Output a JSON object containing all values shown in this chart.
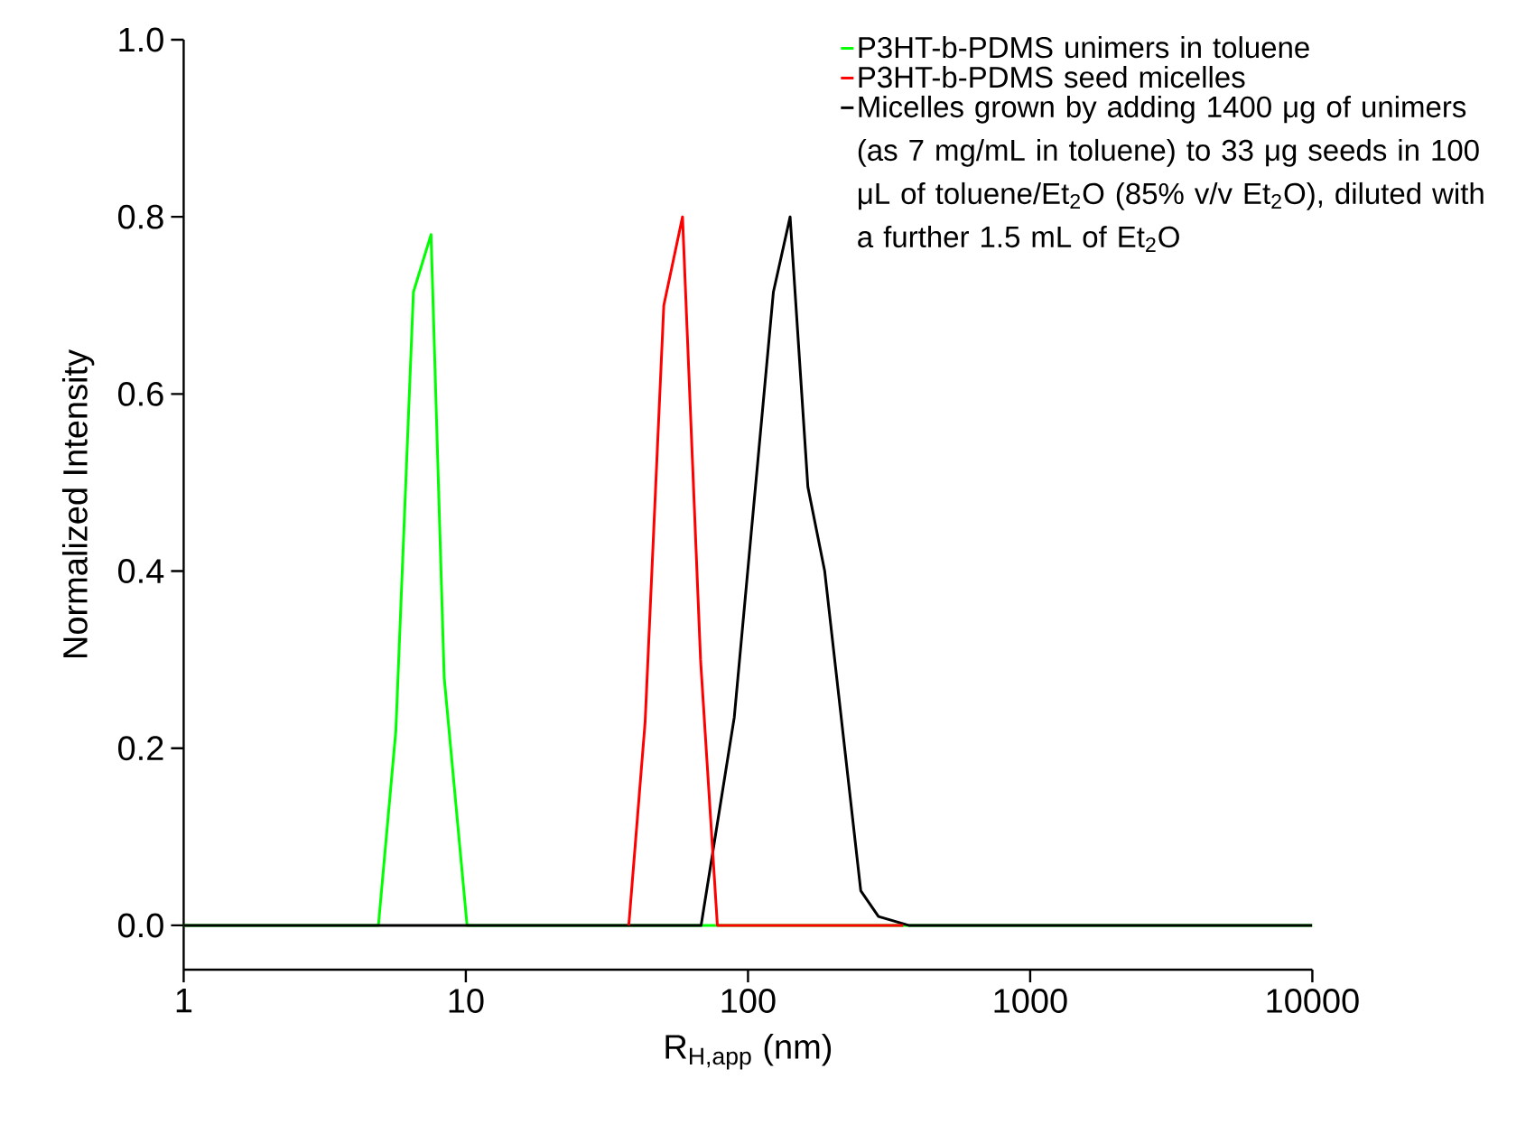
{
  "chart_data": {
    "type": "line",
    "xlabel": "R$_{H,app}$ (nm)",
    "ylabel": "Normalized Intensity",
    "log": "x",
    "xlim": [
      1,
      10000
    ],
    "xticks": [
      1,
      10,
      100,
      1000,
      10000
    ],
    "ylim": [
      -0.05,
      1.0
    ],
    "yticks": [
      {
        "value": 0,
        "label": "0.0"
      },
      {
        "value": 0.2,
        "label": "0.2"
      },
      {
        "value": 0.4,
        "label": "0.4"
      },
      {
        "value": 0.6,
        "label": "0.6"
      },
      {
        "value": 0.8,
        "label": "0.8"
      },
      {
        "value": 1.0,
        "label": "1.0"
      }
    ],
    "legend": "top right",
    "grid": false,
    "marker": "none",
    "line_style": "solid",
    "series": [
      {
        "name": "P3HT-b-PDMS unimers in toluene",
        "color": "#00ff00",
        "x": [
          1,
          4.9,
          5.65,
          6.52,
          7.53,
          8.38,
          10.1,
          10000
        ],
        "values": [
          0,
          0,
          0.22,
          0.715,
          0.78,
          0.28,
          0,
          0
        ]
      },
      {
        "name": "P3HT-b-PDMS seed micelles",
        "color": "#ff0000",
        "x": [
          37.8,
          43.2,
          50.3,
          58.6,
          67.9,
          77.9,
          355
        ],
        "values": [
          0,
          0.23,
          0.7,
          0.8,
          0.3,
          0,
          0
        ]
      },
      {
        "name": "Micelles grown by adding 1400 μg of unimers (as 7 mg/mL in toluene) to 33 μg seeds in 100 μL of toluene/Et$_{2}$O (85% v/v Et$_{2}$O), diluted with a further 1.5 mL of Et$_{2}$O",
        "color": "#000000",
        "x": [
          1,
          68.2,
          89.4,
          123,
          141,
          163,
          187,
          251,
          290,
          371,
          10000
        ],
        "values": [
          0,
          0,
          0.235,
          0.715,
          0.8,
          0.495,
          0.4,
          0.039,
          0.01,
          0,
          0
        ]
      }
    ]
  }
}
